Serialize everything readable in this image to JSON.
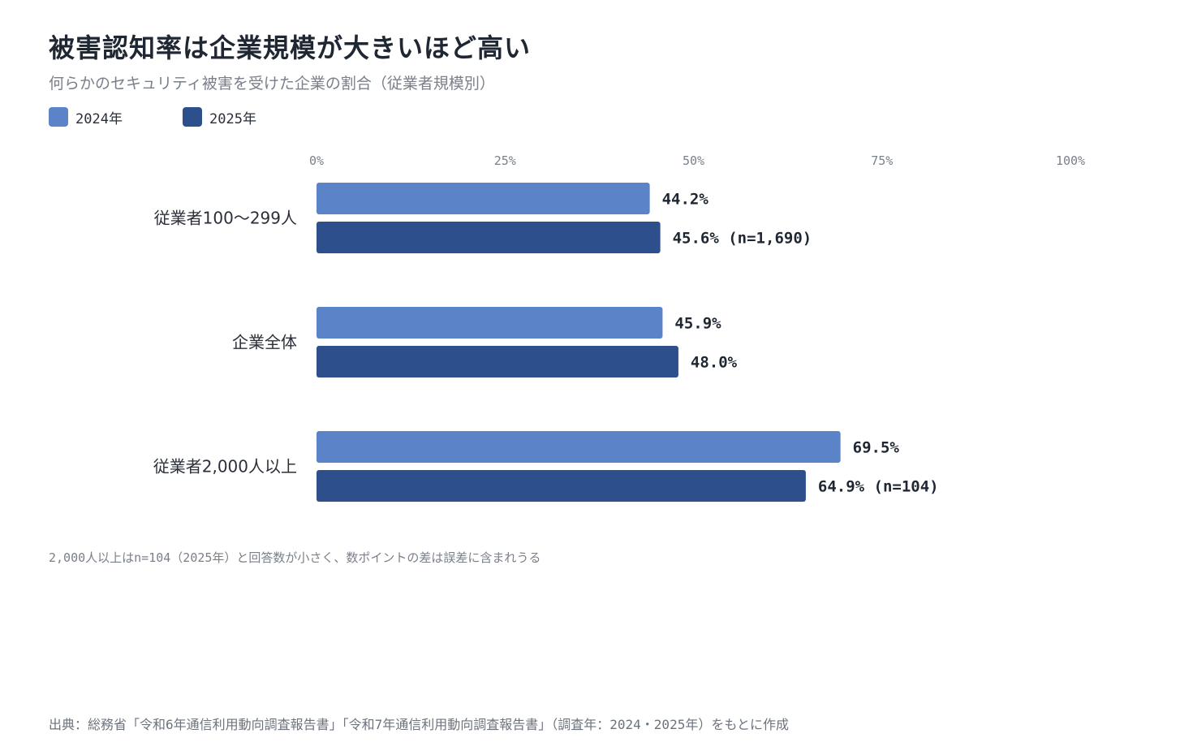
{
  "header": {
    "title": "被害認知率は企業規模が大きいほど高い",
    "subtitle": "何らかのセキュリティ被害を受けた企業の割合（従業者規模別）"
  },
  "legend": {
    "items": [
      {
        "label": "2024年",
        "color": "#5b84c8"
      },
      {
        "label": "2025年",
        "color": "#2d4f8c"
      }
    ]
  },
  "chart_data": {
    "type": "bar",
    "orientation": "horizontal",
    "title": "被害認知率は企業規模が大きいほど高い",
    "subtitle": "何らかのセキュリティ被害を受けた企業の割合（従業者規模別）",
    "categories": [
      "従業者100〜299人",
      "企業全体",
      "従業者2,000人以上"
    ],
    "series": [
      {
        "name": "2024年",
        "color": "#5b84c8",
        "values": [
          44.2,
          45.9,
          69.5
        ],
        "labels": [
          "44.2%",
          "45.9%",
          "69.5%"
        ]
      },
      {
        "name": "2025年",
        "color": "#2d4f8c",
        "values": [
          45.6,
          48.0,
          64.9
        ],
        "labels": [
          "45.6% (n=1,690)",
          "48.0%",
          "64.9% (n=104)"
        ]
      }
    ],
    "xlim": [
      0,
      100
    ],
    "x_ticks": [
      0,
      25,
      50,
      75,
      100
    ],
    "x_tick_labels": [
      "0%",
      "25%",
      "50%",
      "75%",
      "100%"
    ],
    "xlabel": "",
    "ylabel": "",
    "grid": false,
    "legend_position": "top-left"
  },
  "footnote": "2,000人以上はn=104（2025年）と回答数が小さく、数ポイントの差は誤差に含まれうる",
  "source": "出典：総務省「令和6年通信利用動向調査報告書」「令和7年通信利用動向調査報告書」（調査年：2024・2025年）をもとに作成"
}
